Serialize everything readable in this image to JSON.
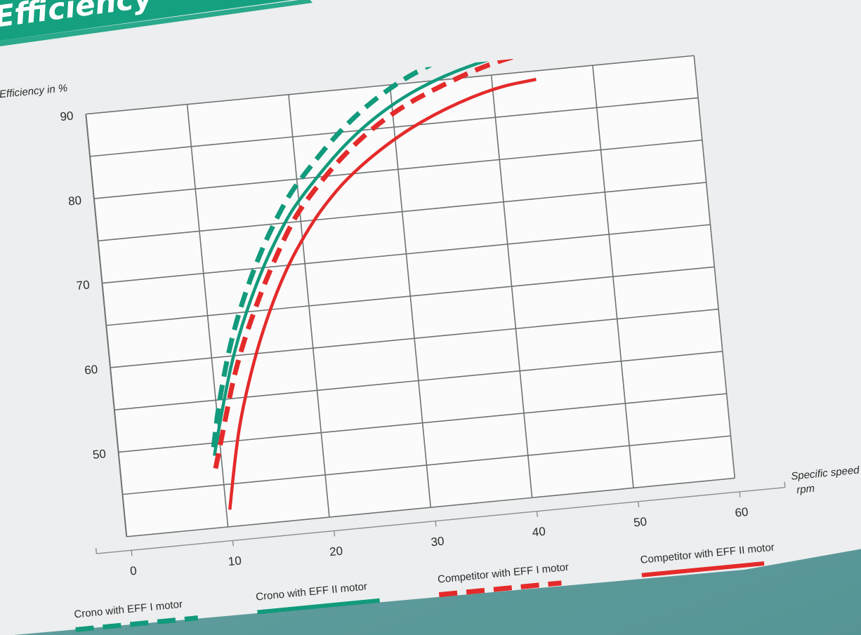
{
  "header": {
    "title_fragment": "Efficiency"
  },
  "colors": {
    "green": "#129a7c",
    "red": "#e42a2a",
    "paper": "#eceeef",
    "plot_bg": "#fbfbfb",
    "grid": "#6f7373",
    "heading_bar": "#15a17f"
  },
  "chart_data": {
    "type": "line",
    "title": "",
    "ylabel": "Efficiency in %",
    "xlabel": "Specific speed",
    "xunit": "rpm",
    "xlim": [
      0,
      60
    ],
    "ylim": [
      40,
      90
    ],
    "x_ticks": [
      "0",
      "10",
      "20",
      "30",
      "40",
      "50",
      "60"
    ],
    "y_ticks": [
      "50",
      "60",
      "70",
      "80",
      "90"
    ],
    "grid": true,
    "legend_position": "bottom",
    "series": [
      {
        "name": "Crono with EFF I motor",
        "style": "dashed",
        "color": "#129a7c",
        "x": [
          9,
          10,
          12,
          15,
          18,
          20,
          25,
          30,
          35,
          38
        ],
        "y": [
          49.5,
          55,
          63,
          71,
          77,
          80,
          86,
          90,
          92.5,
          93.5
        ]
      },
      {
        "name": "Crono with EFF II motor",
        "style": "solid",
        "color": "#129a7c",
        "x": [
          9,
          10,
          12,
          15,
          18,
          20,
          25,
          30,
          35,
          40,
          44
        ],
        "y": [
          48.5,
          53,
          61,
          69,
          75,
          78,
          84,
          88,
          90.5,
          92,
          93
        ]
      },
      {
        "name": "Competitor with EFF I motor",
        "style": "dashed",
        "color": "#e42a2a",
        "x": [
          9,
          10,
          12,
          15,
          18,
          20,
          25,
          30,
          35,
          40,
          45
        ],
        "y": [
          47,
          51,
          59,
          67,
          73.5,
          77,
          83,
          87,
          89.5,
          91.5,
          92.5
        ]
      },
      {
        "name": "Competitor with EFF II motor",
        "style": "solid",
        "color": "#e42a2a",
        "x": [
          10,
          11,
          12,
          14,
          16,
          18,
          20,
          22,
          25,
          30,
          35,
          40,
          44
        ],
        "y": [
          42,
          48,
          53,
          60,
          65.5,
          70,
          73.5,
          76.5,
          80,
          84,
          86.7,
          88.5,
          89
        ]
      }
    ]
  }
}
